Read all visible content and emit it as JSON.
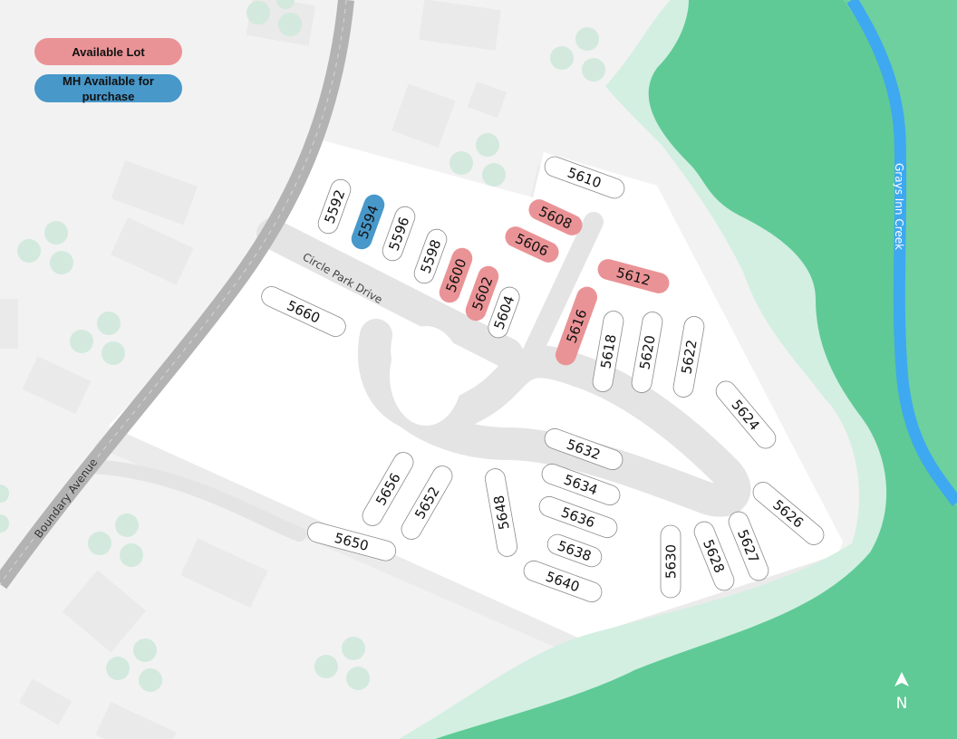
{
  "legend": {
    "available_lot": {
      "label": "Available Lot",
      "color": "#ea9396"
    },
    "mh_available": {
      "label": "MH Available for purchase",
      "color": "#4898ca"
    }
  },
  "streets": {
    "boundary_avenue": "Boundary Avenue",
    "circle_park_drive": "Circle Park Drive",
    "creek": "Grays Inn Creek"
  },
  "north_label": "N",
  "colors": {
    "background": "#f2f2f2",
    "property": "#ffffff",
    "road": "#b3b3b3",
    "inner_road": "#e4e4e4",
    "land_green": "#5fca96",
    "shore_green": "#d3efe1",
    "creek": "#3ea8f0"
  },
  "lots": [
    {
      "number": "5592",
      "status": "occupied"
    },
    {
      "number": "5594",
      "status": "mh_available"
    },
    {
      "number": "5596",
      "status": "occupied"
    },
    {
      "number": "5598",
      "status": "occupied"
    },
    {
      "number": "5600",
      "status": "available_lot"
    },
    {
      "number": "5602",
      "status": "available_lot"
    },
    {
      "number": "5604",
      "status": "occupied"
    },
    {
      "number": "5606",
      "status": "available_lot"
    },
    {
      "number": "5608",
      "status": "available_lot"
    },
    {
      "number": "5610",
      "status": "occupied"
    },
    {
      "number": "5612",
      "status": "available_lot"
    },
    {
      "number": "5616",
      "status": "available_lot"
    },
    {
      "number": "5618",
      "status": "occupied"
    },
    {
      "number": "5620",
      "status": "occupied"
    },
    {
      "number": "5622",
      "status": "occupied"
    },
    {
      "number": "5624",
      "status": "occupied"
    },
    {
      "number": "5626",
      "status": "occupied"
    },
    {
      "number": "5627",
      "status": "occupied"
    },
    {
      "number": "5628",
      "status": "occupied"
    },
    {
      "number": "5630",
      "status": "occupied"
    },
    {
      "number": "5632",
      "status": "occupied"
    },
    {
      "number": "5634",
      "status": "occupied"
    },
    {
      "number": "5636",
      "status": "occupied"
    },
    {
      "number": "5638",
      "status": "occupied"
    },
    {
      "number": "5640",
      "status": "occupied"
    },
    {
      "number": "5648",
      "status": "occupied"
    },
    {
      "number": "5650",
      "status": "occupied"
    },
    {
      "number": "5652",
      "status": "occupied"
    },
    {
      "number": "5656",
      "status": "occupied"
    },
    {
      "number": "5660",
      "status": "occupied"
    }
  ]
}
